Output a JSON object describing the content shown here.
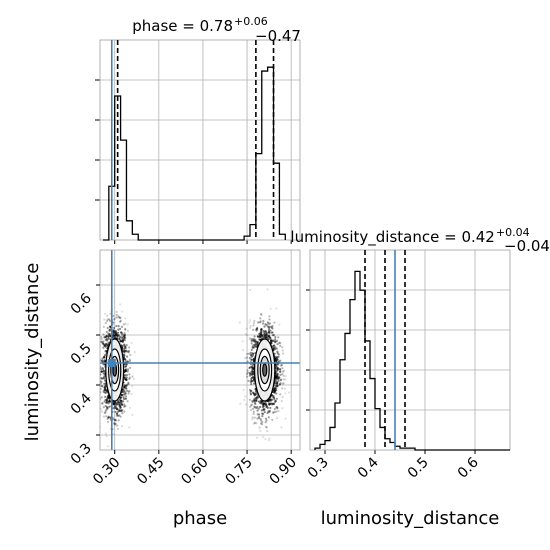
{
  "chart_data": [
    {
      "type": "histogram",
      "panel": "phase-marginal",
      "title": "phase = 0.78",
      "title_sup": "+0.06",
      "title_sub": "−0.47",
      "xlim": [
        0.25,
        0.93
      ],
      "bins_start": 0.26,
      "bin_width": 0.02,
      "counts": [
        0,
        0.28,
        0.75,
        0.52,
        0.1,
        0.03,
        0,
        0,
        0,
        0,
        0,
        0,
        0,
        0,
        0,
        0,
        0,
        0,
        0,
        0,
        0,
        0,
        0,
        0,
        0.02,
        0.08,
        0.45,
        0.88,
        0.9,
        0.4,
        0.03
      ],
      "quantiles": [
        0.31,
        0.78,
        0.84
      ],
      "truth": 0.29
    },
    {
      "type": "histogram",
      "panel": "luminosity-distance-marginal",
      "title": "luminosity_distance = 0.42",
      "title_sup": "+0.04",
      "title_sub": "−0.04",
      "xlim": [
        0.27,
        0.67
      ],
      "xticks": [
        0.3,
        0.4,
        0.5,
        0.6
      ],
      "xlabel": "luminosity_distance",
      "bins_start": 0.28,
      "bin_width": 0.01,
      "counts": [
        0.01,
        0.03,
        0.05,
        0.12,
        0.25,
        0.48,
        0.62,
        0.8,
        0.95,
        0.85,
        0.58,
        0.38,
        0.22,
        0.12,
        0.06,
        0.04,
        0.02,
        0.01,
        0.01,
        0.01,
        0,
        0,
        0,
        0,
        0,
        0,
        0,
        0,
        0,
        0,
        0,
        0,
        0,
        0,
        0,
        0,
        0,
        0,
        0
      ],
      "quantiles": [
        0.38,
        0.42,
        0.46
      ],
      "truth": 0.44
    },
    {
      "type": "scatter",
      "panel": "phase-vs-luminosity-distance",
      "xlabel": "phase",
      "ylabel": "luminosity_distance",
      "xlim": [
        0.25,
        0.93
      ],
      "ylim": [
        0.27,
        0.67
      ],
      "xticks": [
        0.3,
        0.45,
        0.6,
        0.75,
        0.9
      ],
      "yticks": [
        0.3,
        0.4,
        0.5,
        0.6
      ],
      "clusters": [
        {
          "x_center": 0.3,
          "y_center": 0.43,
          "x_sd": 0.022,
          "y_sd": 0.045
        },
        {
          "x_center": 0.81,
          "y_center": 0.43,
          "x_sd": 0.025,
          "y_sd": 0.045
        }
      ],
      "truth": {
        "x": 0.29,
        "y": 0.444
      }
    }
  ]
}
